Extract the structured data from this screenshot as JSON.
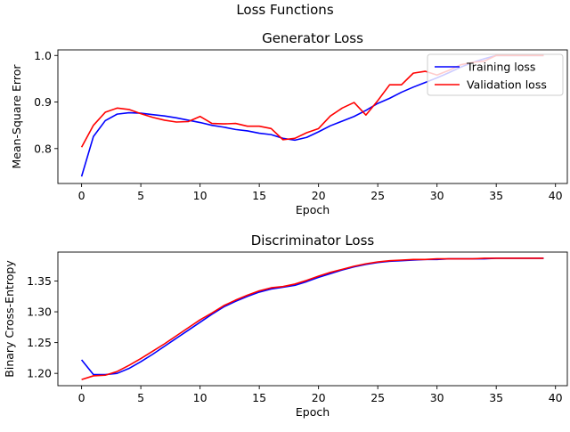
{
  "figure": {
    "suptitle": "Loss Functions"
  },
  "chart_data": [
    {
      "type": "line",
      "title": "Generator Loss",
      "xlabel": "Epoch",
      "ylabel": "Mean-Square Error",
      "xlim": [
        -2,
        41
      ],
      "ylim": [
        0.725,
        1.012
      ],
      "xticks": [
        0,
        5,
        10,
        15,
        20,
        25,
        30,
        35,
        40
      ],
      "yticks": [
        0.8,
        0.9,
        1.0
      ],
      "ytick_labels": [
        "0.8",
        "0.9",
        "1.0"
      ],
      "grid": false,
      "legend_position": "upper right",
      "series": [
        {
          "name": "Training loss",
          "color": "#0000ff",
          "x": [
            0,
            1,
            2,
            3,
            4,
            5,
            6,
            7,
            8,
            9,
            10,
            11,
            12,
            13,
            14,
            15,
            16,
            17,
            18,
            19,
            20,
            21,
            22,
            23,
            24,
            25,
            26,
            27,
            28,
            29,
            30,
            31,
            32,
            33,
            34,
            35,
            36,
            37,
            38,
            39
          ],
          "y": [
            0.74,
            0.826,
            0.86,
            0.874,
            0.877,
            0.876,
            0.873,
            0.87,
            0.866,
            0.861,
            0.856,
            0.85,
            0.846,
            0.841,
            0.838,
            0.833,
            0.83,
            0.822,
            0.818,
            0.824,
            0.836,
            0.849,
            0.859,
            0.869,
            0.882,
            0.897,
            0.908,
            0.921,
            0.932,
            0.942,
            0.952,
            0.963,
            0.975,
            0.985,
            0.993,
            1.0,
            1.0,
            1.0,
            1.0,
            1.0
          ]
        },
        {
          "name": "Validation loss",
          "color": "#ff0000",
          "x": [
            0,
            1,
            2,
            3,
            4,
            5,
            6,
            7,
            8,
            9,
            10,
            11,
            12,
            13,
            14,
            15,
            16,
            17,
            18,
            19,
            20,
            21,
            22,
            23,
            24,
            25,
            26,
            27,
            28,
            29,
            30,
            31,
            32,
            33,
            34,
            35,
            36,
            37,
            38,
            39
          ],
          "y": [
            0.803,
            0.85,
            0.878,
            0.887,
            0.884,
            0.875,
            0.867,
            0.861,
            0.857,
            0.858,
            0.869,
            0.854,
            0.853,
            0.854,
            0.848,
            0.848,
            0.843,
            0.819,
            0.822,
            0.834,
            0.843,
            0.87,
            0.887,
            0.899,
            0.872,
            0.903,
            0.937,
            0.937,
            0.962,
            0.966,
            0.958,
            0.968,
            0.98,
            0.985,
            0.988,
            1.0,
            1.0,
            1.0,
            1.0,
            1.0
          ]
        }
      ]
    },
    {
      "type": "line",
      "title": "Discriminator Loss",
      "xlabel": "Epoch",
      "ylabel": "Binary Cross-Entropy",
      "xlim": [
        -2,
        41
      ],
      "ylim": [
        1.18,
        1.397
      ],
      "xticks": [
        0,
        5,
        10,
        15,
        20,
        25,
        30,
        35,
        40
      ],
      "yticks": [
        1.2,
        1.25,
        1.3,
        1.35
      ],
      "ytick_labels": [
        "1.20",
        "1.25",
        "1.30",
        "1.35"
      ],
      "grid": false,
      "series": [
        {
          "name": "",
          "color": "#0000ff",
          "x": [
            0,
            1,
            2,
            3,
            4,
            5,
            6,
            7,
            8,
            9,
            10,
            11,
            12,
            13,
            14,
            15,
            16,
            17,
            18,
            19,
            20,
            21,
            22,
            23,
            24,
            25,
            26,
            27,
            28,
            29,
            30,
            31,
            32,
            33,
            34,
            35,
            36,
            37,
            38,
            39
          ],
          "y": [
            1.222,
            1.198,
            1.198,
            1.2,
            1.208,
            1.219,
            1.231,
            1.244,
            1.257,
            1.27,
            1.283,
            1.296,
            1.308,
            1.317,
            1.325,
            1.332,
            1.337,
            1.34,
            1.343,
            1.349,
            1.356,
            1.362,
            1.368,
            1.373,
            1.377,
            1.38,
            1.382,
            1.383,
            1.384,
            1.385,
            1.385,
            1.386,
            1.386,
            1.386,
            1.386,
            1.387,
            1.387,
            1.387,
            1.387,
            1.387
          ]
        },
        {
          "name": "",
          "color": "#ff0000",
          "x": [
            0,
            1,
            2,
            3,
            4,
            5,
            6,
            7,
            8,
            9,
            10,
            11,
            12,
            13,
            14,
            15,
            16,
            17,
            18,
            19,
            20,
            21,
            22,
            23,
            24,
            25,
            26,
            27,
            28,
            29,
            30,
            31,
            32,
            33,
            34,
            35,
            36,
            37,
            38,
            39
          ],
          "y": [
            1.19,
            1.196,
            1.197,
            1.203,
            1.213,
            1.224,
            1.236,
            1.248,
            1.261,
            1.274,
            1.287,
            1.298,
            1.31,
            1.319,
            1.327,
            1.334,
            1.339,
            1.341,
            1.345,
            1.351,
            1.358,
            1.364,
            1.369,
            1.374,
            1.378,
            1.381,
            1.383,
            1.384,
            1.385,
            1.385,
            1.386,
            1.386,
            1.386,
            1.386,
            1.387,
            1.387,
            1.387,
            1.387,
            1.387,
            1.387
          ]
        }
      ]
    }
  ]
}
